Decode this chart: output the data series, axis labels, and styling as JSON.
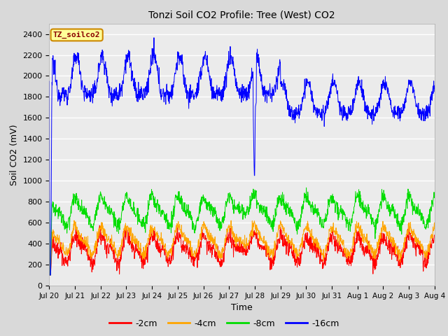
{
  "title": "Tonzi Soil CO2 Profile: Tree (West) CO2",
  "xlabel": "Time",
  "ylabel": "Soil CO2 (mV)",
  "legend_label": "TZ_soilco2",
  "series_labels": [
    "-2cm",
    "-4cm",
    "-8cm",
    "-16cm"
  ],
  "series_colors": [
    "#ff0000",
    "#ffa500",
    "#00dd00",
    "#0000ff"
  ],
  "ylim": [
    0,
    2500
  ],
  "yticks": [
    0,
    200,
    400,
    600,
    800,
    1000,
    1200,
    1400,
    1600,
    1800,
    2000,
    2200,
    2400
  ],
  "n_days": 15,
  "pts_per_day": 96,
  "background_color": "#d9d9d9",
  "plot_bg_color": "#ebebeb",
  "title_fontsize": 10,
  "axis_fontsize": 9,
  "tick_fontsize": 8
}
